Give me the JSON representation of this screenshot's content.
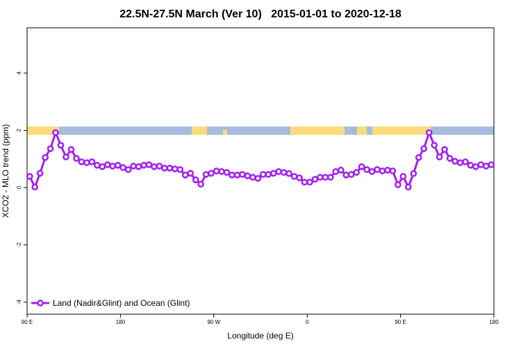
{
  "chart_data": {
    "type": "line",
    "title": "22.5N-27.5N March (Ver 10)   2015-01-01 to 2020-12-18",
    "x_label": "Longitude (deg E)",
    "y_label": "XCO2 - MLO trend (ppm)",
    "xlim": [
      90,
      540
    ],
    "ylim": [
      -4.42,
      5.58
    ],
    "xticks": [
      {
        "value": 90,
        "label": "90 E"
      },
      180,
      {
        "value": 270,
        "label": "90 W"
      },
      {
        "value": 360,
        "label": "0"
      },
      {
        "value": 450,
        "label": "90 E"
      },
      {
        "value": 540,
        "label": "180"
      }
    ],
    "yticks": [
      -4,
      -2,
      0,
      2,
      4
    ],
    "legend": "bottom-left",
    "x": [
      92.5,
      97.5,
      102.5,
      107.5,
      112.5,
      117.5,
      122.5,
      127.5,
      132.5,
      137.5,
      142.5,
      147.5,
      152.5,
      157.5,
      162.5,
      167.5,
      172.5,
      177.5,
      182.5,
      187.5,
      192.5,
      197.5,
      202.5,
      207.5,
      212.5,
      217.5,
      222.5,
      227.5,
      232.5,
      237.5,
      242.5,
      247.5,
      252.5,
      257.5,
      262.5,
      267.5,
      272.5,
      277.5,
      282.5,
      287.5,
      292.5,
      297.5,
      302.5,
      307.5,
      312.5,
      317.5,
      322.5,
      327.5,
      332.5,
      337.5,
      342.5,
      347.5,
      352.5,
      357.5,
      362.5,
      367.5,
      372.5,
      377.5,
      382.5,
      387.5,
      392.5,
      397.5,
      402.5,
      407.5,
      412.5,
      417.5,
      422.5,
      427.5,
      432.5,
      437.5,
      442.5,
      447.5,
      452.5,
      457.5,
      462.5,
      467.5,
      472.5,
      477.5,
      482.5,
      487.5,
      492.5,
      497.5,
      502.5,
      507.5,
      512.5,
      517.5,
      522.5,
      527.5,
      532.5,
      537.5
    ],
    "series": [
      {
        "name": "Land (Nadir&Glint) and Ocean (Glint)",
        "color": "#a020f0",
        "values": [
          0.39,
          0.02,
          0.5,
          1.05,
          1.36,
          1.92,
          1.48,
          1.07,
          1.33,
          1.02,
          0.9,
          0.87,
          0.9,
          0.78,
          0.73,
          0.8,
          0.75,
          0.78,
          0.7,
          0.63,
          0.75,
          0.73,
          0.78,
          0.8,
          0.73,
          0.75,
          0.68,
          0.68,
          0.65,
          0.63,
          0.44,
          0.5,
          0.27,
          0.12,
          0.46,
          0.5,
          0.58,
          0.56,
          0.53,
          0.44,
          0.44,
          0.46,
          0.41,
          0.36,
          0.32,
          0.46,
          0.46,
          0.5,
          0.56,
          0.53,
          0.49,
          0.39,
          0.34,
          0.19,
          0.19,
          0.29,
          0.36,
          0.36,
          0.36,
          0.56,
          0.61,
          0.44,
          0.46,
          0.53,
          0.73,
          0.63,
          0.56,
          0.63,
          0.58,
          0.61,
          0.58,
          0.1,
          0.39,
          0.02,
          0.49,
          1.05,
          1.36,
          1.92,
          1.48,
          1.07,
          1.33,
          1.02,
          0.92,
          0.87,
          0.9,
          0.78,
          0.73,
          0.8,
          0.75,
          0.8
        ]
      }
    ]
  }
}
